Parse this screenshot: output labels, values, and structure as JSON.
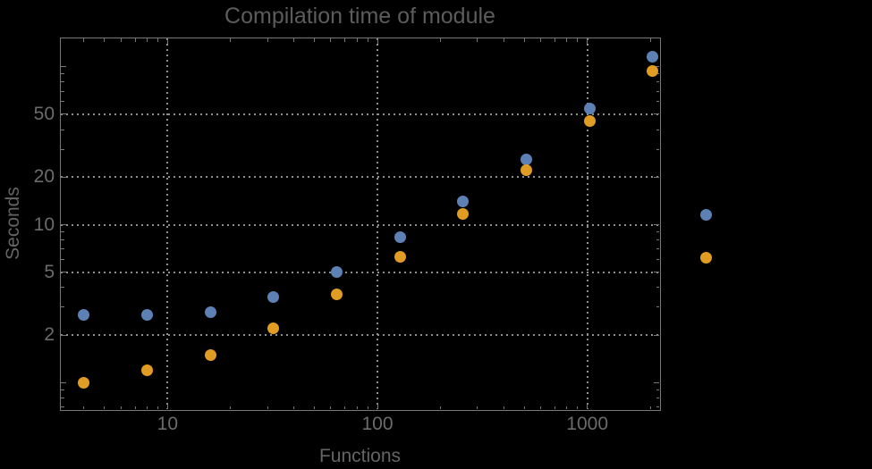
{
  "title": "Compilation time of module",
  "chart_data": {
    "type": "scatter",
    "title": "Compilation time of module",
    "xlabel": "Functions",
    "ylabel": "Seconds",
    "xscale": "log",
    "yscale": "log",
    "xlim": [
      3.1,
      2200
    ],
    "ylim": [
      0.68,
      151
    ],
    "grid": {
      "style": "dotted",
      "x_values": [
        10,
        100,
        1000
      ],
      "y_values": [
        2,
        5,
        10,
        20,
        50
      ]
    },
    "x_ticks": [
      {
        "value": 10,
        "label": "10"
      },
      {
        "value": 100,
        "label": "100"
      },
      {
        "value": 1000,
        "label": "1000"
      }
    ],
    "y_ticks": [
      {
        "value": 2,
        "label": "2"
      },
      {
        "value": 5,
        "label": "5"
      },
      {
        "value": 10,
        "label": "10"
      },
      {
        "value": 20,
        "label": "20"
      },
      {
        "value": 50,
        "label": "50"
      }
    ],
    "y_unlabeled_major_ticks": [
      1,
      100
    ],
    "x": [
      4,
      8,
      16,
      32,
      64,
      128,
      256,
      512,
      1024,
      2048
    ],
    "series": [
      {
        "color": "#5E81B5",
        "marker": "disk",
        "values": [
          2.7,
          2.7,
          2.8,
          3.5,
          5.0,
          8.3,
          14,
          26,
          54,
          115
        ]
      },
      {
        "color": "#E19C24",
        "marker": "disk",
        "values": [
          1.0,
          1.2,
          1.5,
          2.2,
          3.6,
          6.3,
          11.7,
          22,
          45,
          94
        ]
      }
    ],
    "legend": {
      "position": "right-outside",
      "markers": [
        {
          "color": "#5E81B5",
          "label": ""
        },
        {
          "color": "#E19C24",
          "label": ""
        }
      ]
    }
  },
  "colors": {
    "background": "#000000",
    "frame": "#787878",
    "grid": "#8f8f8f",
    "tick_label": "#6b6b6b",
    "axis_label": "#646464",
    "title": "#5c5c5c",
    "series_blue": "#5E81B5",
    "series_orange": "#E19C24"
  }
}
